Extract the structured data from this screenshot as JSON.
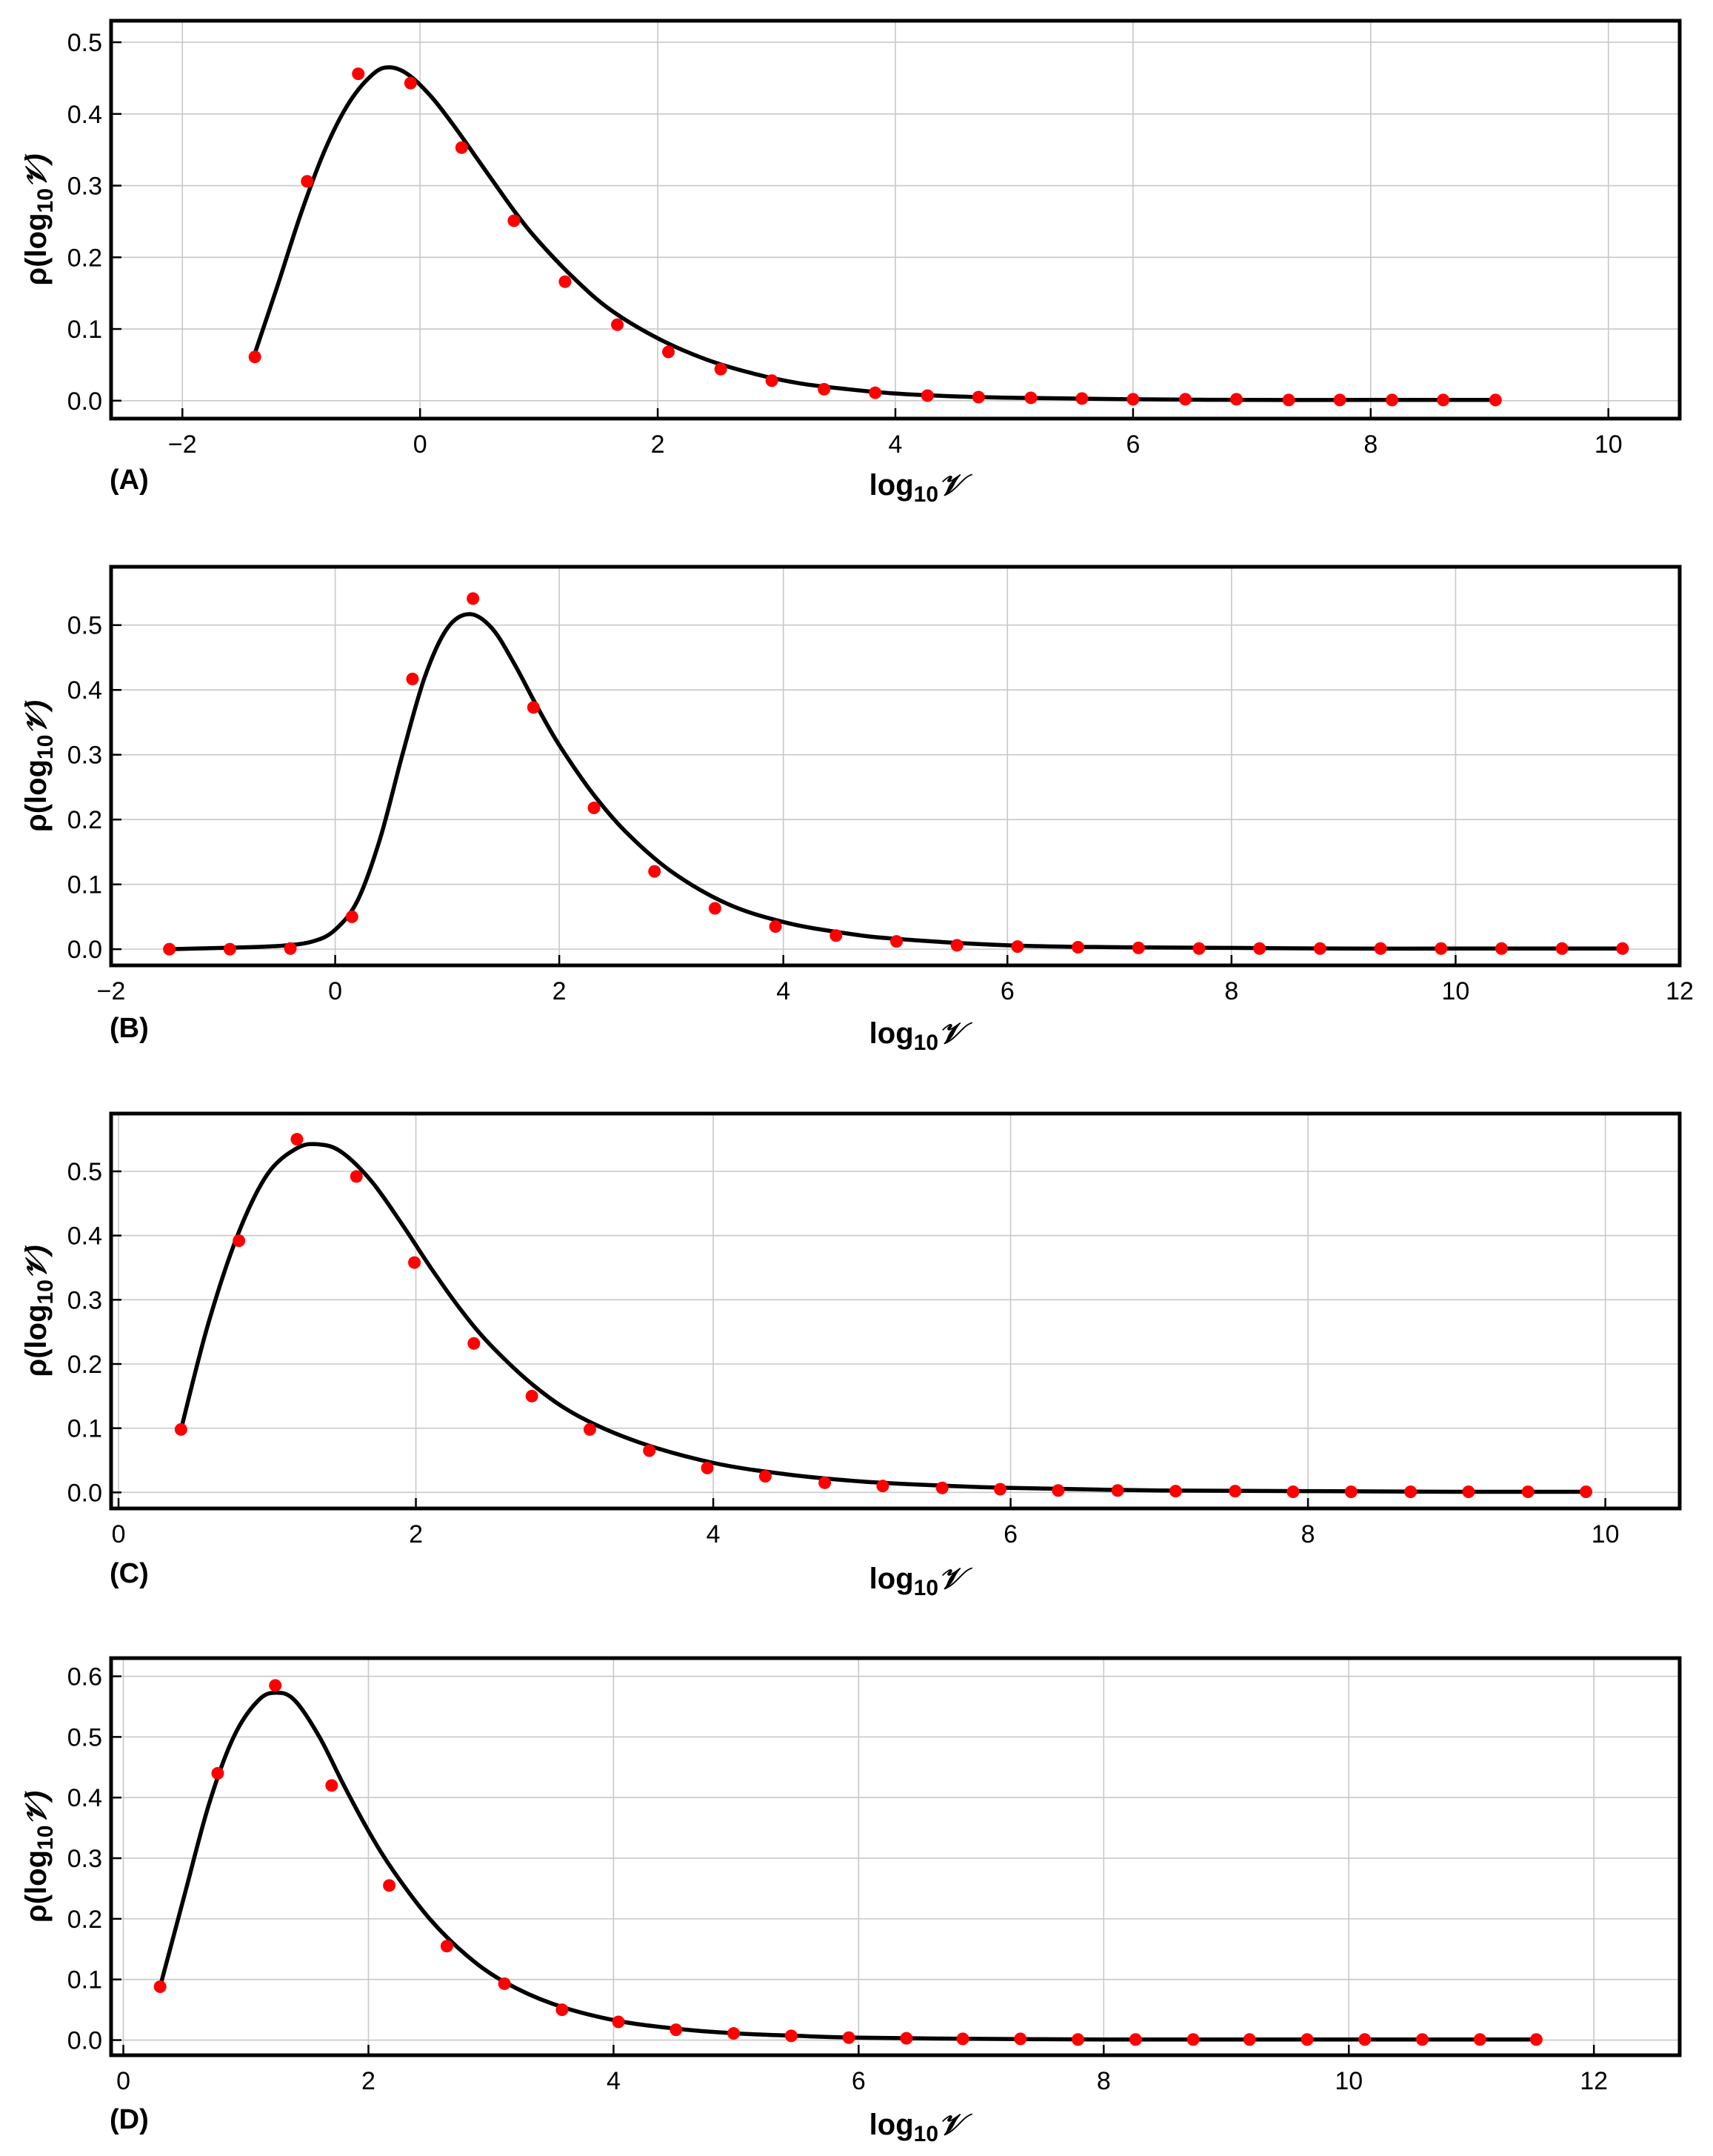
{
  "figure": {
    "xlabel_text": "log",
    "xlabel_sub": "10",
    "xlabel_sym": "𝒱"
  },
  "chart_data": [
    {
      "type": "scatter",
      "panel_label": "(A)",
      "title": "",
      "xlabel": "log10𝒱",
      "ylabel": "ρ(log10𝒱)",
      "xlim": [
        -2.6,
        10.6
      ],
      "ylim": [
        -0.025,
        0.53
      ],
      "xticks": [
        -2,
        0,
        2,
        4,
        6,
        8,
        10
      ],
      "xtick_labels": [
        "−2",
        "0",
        "2",
        "4",
        "6",
        "8",
        "10"
      ],
      "yticks": [
        0.0,
        0.1,
        0.2,
        0.3,
        0.4,
        0.5
      ],
      "ytick_labels": [
        "0.0",
        "0.1",
        "0.2",
        "0.3",
        "0.4",
        "0.5"
      ],
      "grid": true,
      "points": {
        "name": "data",
        "color": "#ff0000",
        "x": [
          -1.39,
          -0.95,
          -0.52,
          -0.08,
          0.35,
          0.79,
          1.22,
          1.66,
          2.09,
          2.53,
          2.96,
          3.4,
          3.83,
          4.27,
          4.7,
          5.14,
          5.57,
          6.0,
          6.44,
          6.87,
          7.31,
          7.74,
          8.18,
          8.61,
          9.05
        ],
        "y": [
          0.061,
          0.306,
          0.456,
          0.443,
          0.353,
          0.251,
          0.166,
          0.106,
          0.068,
          0.044,
          0.028,
          0.016,
          0.011,
          0.007,
          0.005,
          0.004,
          0.003,
          0.002,
          0.002,
          0.002,
          0.001,
          0.001,
          0.001,
          0.001,
          0.001
        ]
      },
      "curve": {
        "name": "fit",
        "color": "#000000",
        "x": [
          -1.4,
          -1.2,
          -1.0,
          -0.8,
          -0.6,
          -0.4,
          -0.26,
          -0.1,
          0.1,
          0.3,
          0.5,
          0.8,
          1.0,
          1.3,
          1.6,
          2.0,
          2.4,
          2.8,
          3.2,
          3.6,
          4.0,
          4.5,
          5.0,
          5.5,
          6.0,
          7.0,
          8.0,
          9.05
        ],
        "y": [
          0.061,
          0.16,
          0.262,
          0.35,
          0.415,
          0.455,
          0.465,
          0.455,
          0.423,
          0.38,
          0.333,
          0.263,
          0.222,
          0.17,
          0.127,
          0.087,
          0.058,
          0.038,
          0.024,
          0.016,
          0.01,
          0.006,
          0.004,
          0.003,
          0.002,
          0.001,
          0.001,
          0.001
        ]
      }
    },
    {
      "type": "scatter",
      "panel_label": "(B)",
      "title": "",
      "xlabel": "log10𝒱",
      "ylabel": "ρ(log10𝒱)",
      "xlim": [
        -2.0,
        12.0
      ],
      "ylim": [
        -0.025,
        0.59
      ],
      "xticks": [
        -2,
        0,
        2,
        4,
        6,
        8,
        10,
        12
      ],
      "xtick_labels": [
        "−2",
        "0",
        "2",
        "4",
        "6",
        "8",
        "10",
        "12"
      ],
      "yticks": [
        0.0,
        0.1,
        0.2,
        0.3,
        0.4,
        0.5
      ],
      "ytick_labels": [
        "0.0",
        "0.1",
        "0.2",
        "0.3",
        "0.4",
        "0.5"
      ],
      "grid": true,
      "points": {
        "name": "data",
        "color": "#ff0000",
        "x": [
          -1.48,
          -0.94,
          -0.4,
          0.15,
          0.69,
          1.23,
          1.77,
          2.31,
          2.85,
          3.39,
          3.93,
          4.47,
          5.01,
          5.55,
          6.09,
          6.63,
          7.17,
          7.71,
          8.25,
          8.79,
          9.33,
          9.87,
          10.41,
          10.95,
          11.49
        ],
        "y": [
          0.0,
          0.0,
          0.001,
          0.05,
          0.417,
          0.541,
          0.373,
          0.218,
          0.12,
          0.063,
          0.035,
          0.021,
          0.012,
          0.006,
          0.004,
          0.003,
          0.002,
          0.001,
          0.001,
          0.001,
          0.001,
          0.001,
          0.001,
          0.001,
          0.001
        ]
      },
      "curve": {
        "name": "fit",
        "color": "#000000",
        "x": [
          -1.48,
          -1.0,
          -0.5,
          -0.2,
          0.0,
          0.2,
          0.4,
          0.6,
          0.8,
          1.0,
          1.2,
          1.4,
          1.6,
          1.8,
          2.0,
          2.3,
          2.6,
          3.0,
          3.5,
          4.0,
          4.5,
          5.0,
          6.0,
          7.0,
          8.0,
          9.0,
          10.0,
          11.49
        ],
        "y": [
          0.0,
          0.002,
          0.005,
          0.012,
          0.03,
          0.075,
          0.17,
          0.3,
          0.42,
          0.495,
          0.517,
          0.495,
          0.44,
          0.375,
          0.315,
          0.24,
          0.18,
          0.12,
          0.07,
          0.042,
          0.026,
          0.016,
          0.006,
          0.003,
          0.002,
          0.001,
          0.001,
          0.001
        ]
      }
    },
    {
      "type": "scatter",
      "panel_label": "(C)",
      "title": "",
      "xlabel": "log10𝒱",
      "ylabel": "ρ(log10𝒱)",
      "xlim": [
        -0.05,
        10.5
      ],
      "ylim": [
        -0.025,
        0.59
      ],
      "xticks": [
        0,
        2,
        4,
        6,
        8,
        10
      ],
      "xtick_labels": [
        "0",
        "2",
        "4",
        "6",
        "8",
        "10"
      ],
      "yticks": [
        0.0,
        0.1,
        0.2,
        0.3,
        0.4,
        0.5
      ],
      "ytick_labels": [
        "0.0",
        "0.1",
        "0.2",
        "0.3",
        "0.4",
        "0.5"
      ],
      "grid": true,
      "points": {
        "name": "data",
        "color": "#ff0000",
        "x": [
          0.42,
          0.81,
          1.2,
          1.6,
          1.99,
          2.39,
          2.78,
          3.17,
          3.57,
          3.96,
          4.35,
          4.75,
          5.14,
          5.54,
          5.93,
          6.32,
          6.72,
          7.11,
          7.51,
          7.9,
          8.29,
          8.69,
          9.08,
          9.48,
          9.87
        ],
        "y": [
          0.098,
          0.392,
          0.55,
          0.492,
          0.358,
          0.232,
          0.15,
          0.098,
          0.065,
          0.038,
          0.025,
          0.015,
          0.01,
          0.007,
          0.005,
          0.003,
          0.003,
          0.002,
          0.002,
          0.001,
          0.001,
          0.001,
          0.001,
          0.001,
          0.001
        ]
      },
      "curve": {
        "name": "fit",
        "color": "#000000",
        "x": [
          0.42,
          0.6,
          0.8,
          1.0,
          1.2,
          1.35,
          1.5,
          1.7,
          1.9,
          2.1,
          2.3,
          2.5,
          2.8,
          3.1,
          3.5,
          4.0,
          4.5,
          5.0,
          5.5,
          6.0,
          7.0,
          8.0,
          9.0,
          9.87
        ],
        "y": [
          0.098,
          0.26,
          0.4,
          0.495,
          0.536,
          0.542,
          0.53,
          0.485,
          0.42,
          0.35,
          0.285,
          0.23,
          0.165,
          0.118,
          0.078,
          0.046,
          0.028,
          0.017,
          0.011,
          0.007,
          0.003,
          0.002,
          0.001,
          0.001
        ]
      }
    },
    {
      "type": "scatter",
      "panel_label": "(D)",
      "title": "",
      "xlabel": "log10𝒱",
      "ylabel": "ρ(log10𝒱)",
      "xlim": [
        -0.1,
        12.7
      ],
      "ylim": [
        -0.025,
        0.63
      ],
      "xticks": [
        0,
        2,
        4,
        6,
        8,
        10,
        12
      ],
      "xtick_labels": [
        "0",
        "2",
        "4",
        "6",
        "8",
        "10",
        "12"
      ],
      "yticks": [
        0.0,
        0.1,
        0.2,
        0.3,
        0.4,
        0.5,
        0.6
      ],
      "ytick_labels": [
        "0.0",
        "0.1",
        "0.2",
        "0.3",
        "0.4",
        "0.5",
        "0.6"
      ],
      "grid": true,
      "points": {
        "name": "data",
        "color": "#ff0000",
        "x": [
          0.3,
          0.77,
          1.24,
          1.7,
          2.17,
          2.64,
          3.11,
          3.58,
          4.04,
          4.51,
          4.98,
          5.45,
          5.92,
          6.39,
          6.85,
          7.32,
          7.79,
          8.26,
          8.73,
          9.19,
          9.66,
          10.13,
          10.6,
          11.07,
          11.53
        ],
        "y": [
          0.088,
          0.44,
          0.585,
          0.42,
          0.255,
          0.155,
          0.093,
          0.05,
          0.03,
          0.017,
          0.011,
          0.007,
          0.004,
          0.003,
          0.002,
          0.002,
          0.001,
          0.001,
          0.001,
          0.001,
          0.001,
          0.001,
          0.001,
          0.001,
          0.001
        ]
      },
      "curve": {
        "name": "fit",
        "color": "#000000",
        "x": [
          0.3,
          0.5,
          0.7,
          0.9,
          1.1,
          1.25,
          1.4,
          1.6,
          1.8,
          2.0,
          2.2,
          2.5,
          2.8,
          3.1,
          3.5,
          4.0,
          4.5,
          5.0,
          5.5,
          6.0,
          7.0,
          8.0,
          9.0,
          10.0,
          11.53
        ],
        "y": [
          0.088,
          0.24,
          0.39,
          0.5,
          0.56,
          0.573,
          0.56,
          0.5,
          0.42,
          0.345,
          0.28,
          0.2,
          0.14,
          0.097,
          0.06,
          0.033,
          0.019,
          0.011,
          0.007,
          0.004,
          0.002,
          0.001,
          0.001,
          0.001,
          0.001
        ]
      }
    }
  ]
}
